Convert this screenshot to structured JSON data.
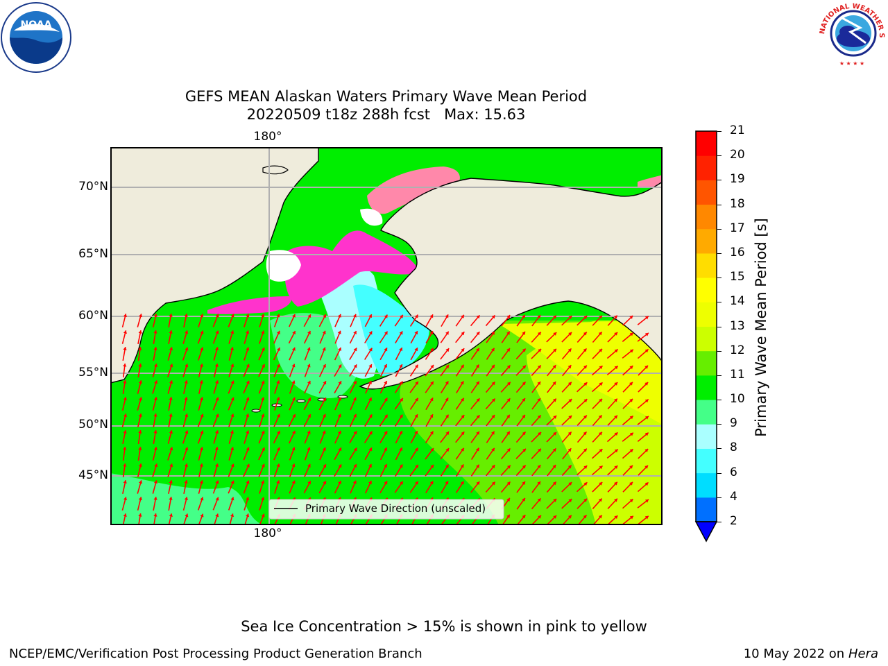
{
  "header": {
    "title_line1": "GEFS MEAN Alaskan Waters Primary Wave Mean Period",
    "title_line2": "20220509 t18z 288h fcst   Max: 15.63"
  },
  "logos": {
    "left": "noaa-logo",
    "left_text": "NOAA",
    "right": "national-weather-service-logo",
    "right_text": "NATIONAL WEATHER SERVICE"
  },
  "map": {
    "lon_top_label": "180°",
    "lon_bottom_label": "180°",
    "lat_labels": [
      "70°N",
      "65°N",
      "60°N",
      "55°N",
      "50°N",
      "45°N"
    ],
    "legend_label": "Primary Wave Direction (unscaled)",
    "land_color": "#efecdc",
    "arrow_color": "#ff0000",
    "ice_colors": [
      "#ff33cc",
      "#ff88aa",
      "#ffcc66"
    ]
  },
  "colorbar": {
    "label": "Primary Wave Mean Period [s]",
    "ticks": [
      "2",
      "4",
      "6",
      "8",
      "9",
      "10",
      "11",
      "12",
      "13",
      "14",
      "15",
      "16",
      "17",
      "18",
      "19",
      "20",
      "21"
    ],
    "colors": [
      "#0070ff",
      "#00ddff",
      "#44ffff",
      "#aaffff",
      "#44ff88",
      "#00ee00",
      "#66ee00",
      "#ccff00",
      "#eeff00",
      "#ffff00",
      "#ffdd00",
      "#ffaa00",
      "#ff8800",
      "#ff5500",
      "#ff2200",
      "#ff0000"
    ],
    "under_color": "#0000ff"
  },
  "footer": {
    "ice_note": "Sea Ice Concentration > 15% is shown in pink to yellow",
    "branch": "NCEP/EMC/Verification Post Processing Product Generation Branch",
    "date": "10 May 2022 on",
    "machine": "Hera"
  }
}
